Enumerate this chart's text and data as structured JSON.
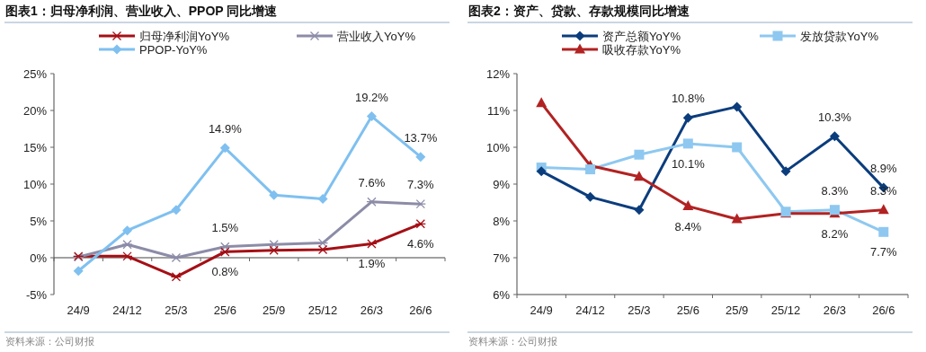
{
  "chart_data": [
    {
      "type": "line",
      "title": "图表1：归母净利润、营业收入、PPOP 同比增速",
      "categories": [
        "24/9",
        "24/12",
        "25/3",
        "25/6",
        "25/9",
        "25/12",
        "26/3",
        "26/6"
      ],
      "series": [
        {
          "name": "归母净利润YoY%",
          "color": "#a50f15",
          "marker": "cross",
          "values": [
            0.2,
            0.2,
            -2.6,
            0.8,
            1.0,
            1.1,
            1.9,
            4.6
          ],
          "value_labels": [
            null,
            null,
            null,
            "0.8%",
            null,
            null,
            "1.9%",
            "4.6%"
          ]
        },
        {
          "name": "营业收入YoY%",
          "color": "#8c8ca8",
          "marker": "cross",
          "values": [
            0.1,
            1.8,
            0.0,
            1.5,
            1.8,
            2.0,
            7.6,
            7.3
          ],
          "value_labels": [
            null,
            null,
            null,
            "1.5%",
            null,
            null,
            "7.6%",
            "7.3%"
          ]
        },
        {
          "name": "PPOP-YoY%",
          "color": "#7fc0f0",
          "marker": "diamond",
          "values": [
            -1.8,
            3.7,
            6.5,
            14.9,
            8.5,
            8.0,
            19.2,
            13.7
          ],
          "value_labels": [
            null,
            null,
            null,
            "14.9%",
            null,
            null,
            "19.2%",
            "13.7%"
          ]
        }
      ],
      "ylim": [
        -5,
        25
      ],
      "yticks": [
        {
          "value": -5,
          "label": "-5%"
        },
        {
          "value": 0,
          "label": "0%"
        },
        {
          "value": 5,
          "label": "5%"
        },
        {
          "value": 10,
          "label": "10%"
        },
        {
          "value": 15,
          "label": "15%"
        },
        {
          "value": 20,
          "label": "20%"
        },
        {
          "value": 25,
          "label": "25%"
        }
      ],
      "legend": "top",
      "annotations": [
        "资料来源：公司财报"
      ]
    },
    {
      "type": "line",
      "title": "图表2：资产、贷款、存款规模同比增速",
      "categories": [
        "24/9",
        "24/12",
        "25/3",
        "25/6",
        "25/9",
        "25/12",
        "26/3",
        "26/6"
      ],
      "series": [
        {
          "name": "资产总额YoY%",
          "color": "#0b3d7d",
          "marker": "diamond",
          "values": [
            9.35,
            8.65,
            8.3,
            10.8,
            11.1,
            9.35,
            10.3,
            8.9
          ],
          "value_labels": [
            null,
            null,
            null,
            "10.8%",
            null,
            null,
            "10.3%",
            "8.9%"
          ]
        },
        {
          "name": "发放贷款YoY%",
          "color": "#8ec8f0",
          "marker": "square",
          "values": [
            9.45,
            9.4,
            9.8,
            10.1,
            10.0,
            8.25,
            8.3,
            7.7
          ],
          "value_labels": [
            null,
            null,
            null,
            "10.1%",
            null,
            null,
            "8.3%",
            "7.7%"
          ]
        },
        {
          "name": "吸收存款YoY%",
          "color": "#b22222",
          "marker": "triangle",
          "values": [
            11.2,
            9.5,
            9.2,
            8.4,
            8.05,
            8.2,
            8.2,
            8.3
          ],
          "value_labels": [
            null,
            null,
            null,
            "8.4%",
            null,
            null,
            "8.2%",
            "8.3%"
          ]
        }
      ],
      "ylim": [
        6,
        12
      ],
      "yticks": [
        {
          "value": 6,
          "label": "6%"
        },
        {
          "value": 7,
          "label": "7%"
        },
        {
          "value": 8,
          "label": "8%"
        },
        {
          "value": 9,
          "label": "9%"
        },
        {
          "value": 10,
          "label": "10%"
        },
        {
          "value": 11,
          "label": "11%"
        },
        {
          "value": 12,
          "label": "12%"
        }
      ],
      "legend": "top",
      "annotations": [
        "资料来源：公司财报"
      ]
    }
  ]
}
